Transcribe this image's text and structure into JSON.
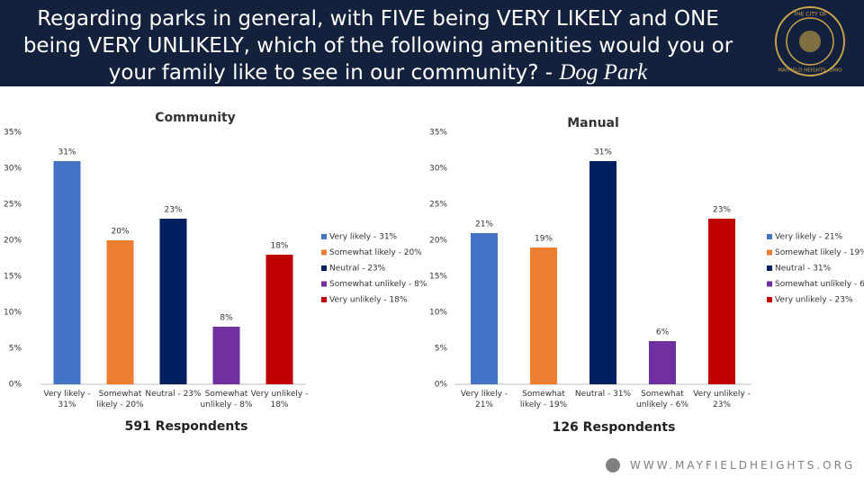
{
  "header": {
    "title": "Regarding parks in general, with FIVE being VERY LIKELY and ONE being VERY UNLIKELY, which of the following amenities would you or your family like to see in our community? -",
    "title_emphasis": "Dog Park"
  },
  "logo": {
    "top": "THE CITY OF",
    "bottom": "MAYFIELD HEIGHTS, OHIO"
  },
  "chart_data": [
    {
      "type": "bar",
      "title": "Community",
      "note": "591 Respondents",
      "categories": [
        "Very likely - 31%",
        "Somewhat likely - 20%",
        "Neutral - 23%",
        "Somewhat unlikely - 8%",
        "Very unlikely - 18%"
      ],
      "values": [
        31,
        20,
        23,
        8,
        18
      ],
      "value_labels": [
        "31%",
        "20%",
        "23%",
        "8%",
        "18%"
      ],
      "colors": [
        "#4472c4",
        "#ed7d31",
        "#002060",
        "#7030a0",
        "#c00000"
      ],
      "ylim": [
        0,
        35
      ],
      "yticks": [
        {
          "value": 0,
          "label": "0%"
        },
        {
          "value": 5,
          "label": "5%"
        },
        {
          "value": 10,
          "label": "10%"
        },
        {
          "value": 15,
          "label": "15%"
        },
        {
          "value": 20,
          "label": "20%"
        },
        {
          "value": 25,
          "label": "25%"
        },
        {
          "value": 30,
          "label": "30%"
        },
        {
          "value": 35,
          "label": "35%"
        }
      ],
      "legend": "right"
    },
    {
      "type": "bar",
      "title": "Manual",
      "note": "126 Respondents",
      "categories": [
        "Very likely - 21%",
        "Somewhat likely - 19%",
        "Neutral - 31%",
        "Somewhat unlikely - 6%",
        "Very unlikely - 23%"
      ],
      "values": [
        21,
        19,
        31,
        6,
        23
      ],
      "value_labels": [
        "21%",
        "19%",
        "31%",
        "6%",
        "23%"
      ],
      "colors": [
        "#4472c4",
        "#ed7d31",
        "#002060",
        "#7030a0",
        "#c00000"
      ],
      "ylim": [
        0,
        35
      ],
      "yticks": [
        {
          "value": 0,
          "label": "0%"
        },
        {
          "value": 5,
          "label": "5%"
        },
        {
          "value": 10,
          "label": "10%"
        },
        {
          "value": 15,
          "label": "15%"
        },
        {
          "value": 20,
          "label": "20%"
        },
        {
          "value": 25,
          "label": "25%"
        },
        {
          "value": 30,
          "label": "30%"
        },
        {
          "value": 35,
          "label": "35%"
        }
      ],
      "legend": "right"
    }
  ],
  "footer": {
    "url": "WWW.MAYFIELDHEIGHTS.ORG"
  }
}
